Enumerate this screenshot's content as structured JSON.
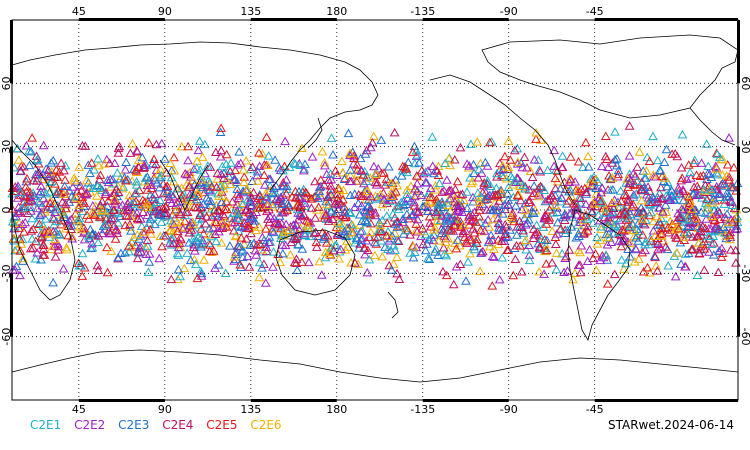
{
  "map": {
    "projection": "cylindrical-equidistant",
    "lon_range": [
      10,
      390
    ],
    "lat_range": [
      -90,
      90
    ],
    "top_lon_labels": [
      "45",
      "90",
      "135",
      "180",
      "-135",
      "-90",
      "-45"
    ],
    "bottom_lon_labels": [
      "45",
      "90",
      "135",
      "180",
      "-135",
      "-90",
      "-45"
    ],
    "lat_labels_left": [
      "60",
      "30",
      "0",
      "-30",
      "-60"
    ],
    "lat_labels_right": [
      "60",
      "30",
      "0",
      "-30",
      "-60"
    ],
    "grid": "dotted every 45° lon and 30° lat",
    "coastline_color": "#000000",
    "observation_lat_band": [
      -42,
      42
    ],
    "observation_marker": "triangle-outline-icon"
  },
  "legend": [
    {
      "label": "C2E1",
      "color": "#1fb0c8"
    },
    {
      "label": "C2E2",
      "color": "#a020c8"
    },
    {
      "label": "C2E3",
      "color": "#2070d0"
    },
    {
      "label": "C2E4",
      "color": "#c01060"
    },
    {
      "label": "C2E5",
      "color": "#e01818"
    },
    {
      "label": "C2E6",
      "color": "#f0b000"
    }
  ],
  "stamp": "STARwet.2024-06-14"
}
